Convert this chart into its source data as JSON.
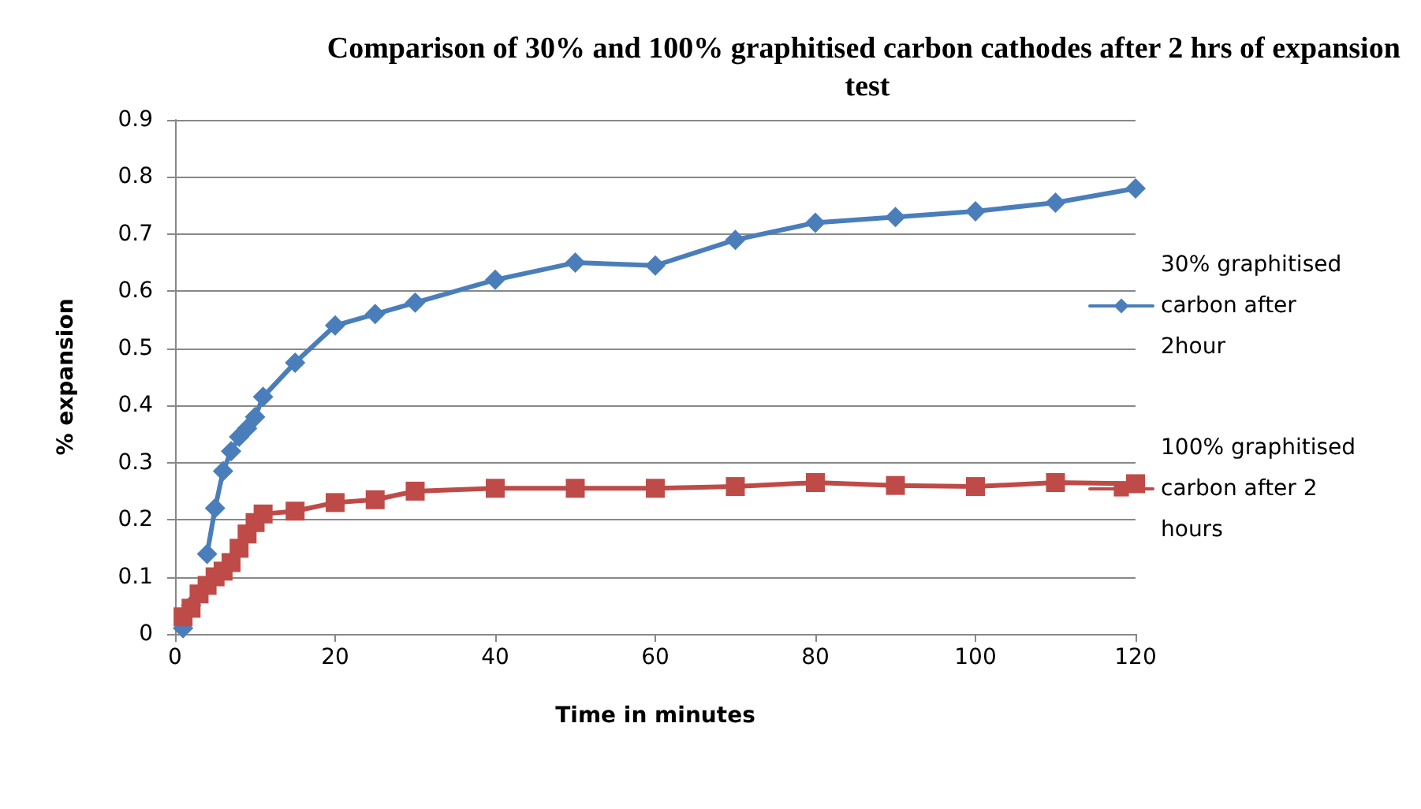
{
  "chart_data": {
    "type": "line",
    "title": "Comparison of 30% and 100% graphitised carbon cathodes after 2 hrs of expansion test",
    "xlabel": "Time in minutes",
    "ylabel": "% expansion",
    "x": [
      1,
      2,
      3,
      4,
      5,
      6,
      7,
      8,
      9,
      10,
      11,
      15,
      20,
      25,
      30,
      40,
      50,
      60,
      70,
      80,
      90,
      100,
      110,
      120
    ],
    "series": [
      {
        "name": "30% graphitised carbon after 2hour",
        "color": "#4a7ebb",
        "marker": "diamond",
        "values": [
          0.01,
          0.05,
          null,
          0.14,
          0.22,
          0.285,
          0.32,
          0.345,
          0.36,
          0.38,
          0.415,
          0.475,
          0.54,
          0.56,
          0.58,
          0.62,
          0.65,
          0.645,
          0.69,
          0.72,
          0.73,
          0.74,
          0.755,
          0.78
        ]
      },
      {
        "name": "100% graphitised carbon after 2 hours",
        "color": "#be4b48",
        "marker": "square",
        "values": [
          0.03,
          0.045,
          0.07,
          0.085,
          0.1,
          0.11,
          0.125,
          0.15,
          0.175,
          0.195,
          0.21,
          0.215,
          0.23,
          0.235,
          0.25,
          0.255,
          0.255,
          0.255,
          0.258,
          0.265,
          0.26,
          0.258,
          0.265,
          0.263
        ]
      }
    ],
    "xlim": [
      0,
      120
    ],
    "xticks": [
      0,
      20,
      40,
      60,
      80,
      100,
      120
    ],
    "ylim": [
      0,
      0.9
    ],
    "yticks": [
      0,
      0.1,
      0.2,
      0.3,
      0.4,
      0.5,
      0.6,
      0.7,
      0.8,
      0.9
    ],
    "grid": "y",
    "legend": "right",
    "line_style": "solid"
  }
}
